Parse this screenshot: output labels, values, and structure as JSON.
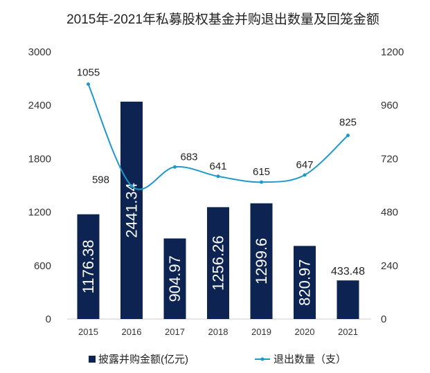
{
  "chart_data": {
    "type": "bar",
    "title": "2015年-2021年私募股权基金并购退出数量及回笼金额",
    "categories": [
      "2015",
      "2016",
      "2017",
      "2018",
      "2019",
      "2020",
      "2021"
    ],
    "series": [
      {
        "name": "披露并购金额(亿元)",
        "type": "bar",
        "axis": "left",
        "values": [
          1176.38,
          2441.34,
          904.97,
          1256.26,
          1299.6,
          820.97,
          433.48
        ],
        "labels": [
          "1176.38",
          "2441.34",
          "904.97",
          "1256.26",
          "1299.6",
          "820.97",
          "433.48"
        ]
      },
      {
        "name": "退出数量（支）",
        "type": "line",
        "smooth": true,
        "axis": "right",
        "values": [
          1055,
          598,
          683,
          641,
          615,
          647,
          825
        ],
        "labels": [
          "1055",
          "598",
          "683",
          "641",
          "615",
          "647",
          "825"
        ]
      }
    ],
    "y_left": {
      "min": 0,
      "max": 3000,
      "ticks": [
        "0",
        "600",
        "1200",
        "1800",
        "2400",
        "3000"
      ]
    },
    "y_right": {
      "min": 0,
      "max": 1200,
      "ticks": [
        "0",
        "240",
        "480",
        "720",
        "960",
        "1200"
      ]
    },
    "grid": false,
    "legend_position": "bottom",
    "colors": {
      "bar": "#0d2352",
      "line": "#1e98c9"
    }
  }
}
